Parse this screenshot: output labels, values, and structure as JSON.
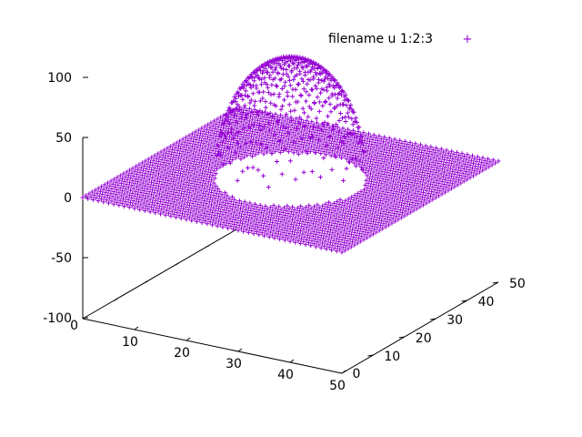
{
  "chart_data": {
    "type": "scatter",
    "subtype": "3d-surface-points",
    "legend": {
      "label": "filename u 1:2:3",
      "marker": "+",
      "placement": "top-right"
    },
    "marker_color": "#9400d3",
    "grid": false,
    "xlim": [
      0,
      50
    ],
    "ylim": [
      0,
      50
    ],
    "zlim": [
      -100,
      100
    ],
    "x_ticks": [
      "10",
      "20",
      "30",
      "40",
      "50"
    ],
    "x_origin_label": "0",
    "y_ticks": [
      "10",
      "20",
      "30",
      "40",
      "50"
    ],
    "y_origin_label": "0",
    "z_ticks": [
      "100",
      "50",
      "0",
      "-50",
      "-100"
    ],
    "surface": {
      "x_range": [
        0,
        50
      ],
      "y_range": [
        0,
        50
      ],
      "grid_count": 51,
      "background_z": 0,
      "bump": {
        "center_x": 25,
        "center_y": 25,
        "peak_z": 100,
        "radius": 12.5
      }
    }
  }
}
